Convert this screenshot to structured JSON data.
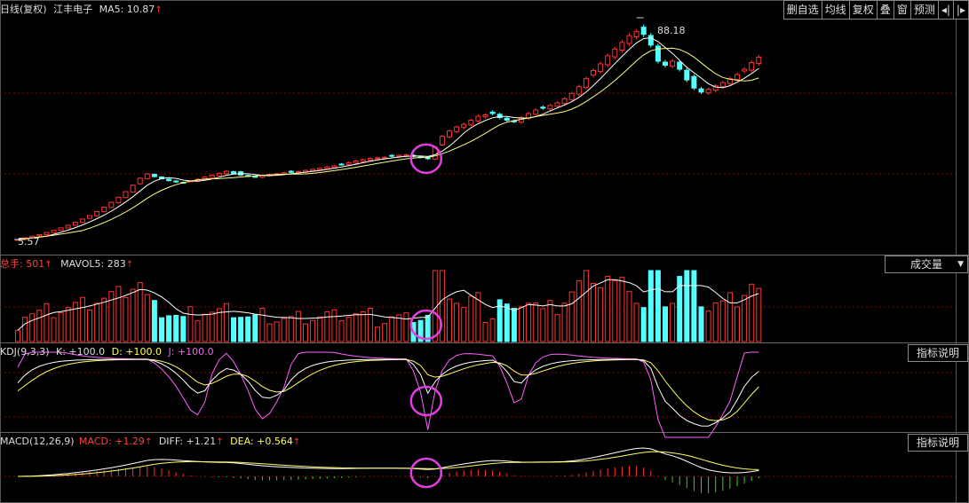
{
  "window": {
    "title_prefix": "日线(复权)",
    "stock_name": "江丰电子",
    "ma_label": "MA5: 10.87",
    "up_arrow": "↑"
  },
  "toolbar": {
    "buttons": [
      "删自选",
      "均线",
      "复权",
      "叠",
      "窗",
      "预测"
    ],
    "arrow_left": "◂|",
    "arrow_right": "|▸"
  },
  "volume_panel": {
    "total_label": "总手: 501",
    "mavol_label": "MAVOL5: 283",
    "dropdown_label": "成交量",
    "dropdown_arrow": "▼"
  },
  "kdj_panel": {
    "title": "KDJ(9,3,3)",
    "k_label": "K: +100.0",
    "d_label": "D: +100.0",
    "j_label": "J: +100.0",
    "help_button": "指标说明"
  },
  "macd_panel": {
    "title": "MACD(12,26,9)",
    "macd_label": "MACD: +1.29",
    "diff_label": "DIFF: +1.21",
    "dea_label": "DEA: +0.564",
    "help_button": "指标说明"
  },
  "colors": {
    "up": "#ff3232",
    "down": "#54ffff",
    "ma_white": "#ffffff",
    "ma_yellow": "#ffff80",
    "k_line": "#ffffff",
    "d_line": "#ffff60",
    "j_line": "#ff60ff",
    "marker": "#e040e0",
    "grid": "#8b0000"
  },
  "chart_data": {
    "type": "candlestick",
    "annotations": {
      "high_label": "88.18",
      "low_label": "5.57"
    },
    "price_range": [
      5.57,
      88.18
    ],
    "closes": [
      5.6,
      6.2,
      6.8,
      7.4,
      8.2,
      9.0,
      9.9,
      10.9,
      12.0,
      13.2,
      14.5,
      16.0,
      17.6,
      19.4,
      21.3,
      23.4,
      25.8,
      28.4,
      30.0,
      29.0,
      28.2,
      27.5,
      27.0,
      26.8,
      27.4,
      28.0,
      28.8,
      29.5,
      30.2,
      31.0,
      30.2,
      29.6,
      29.2,
      28.9,
      29.4,
      29.8,
      30.1,
      30.4,
      30.6,
      30.9,
      31.3,
      31.7,
      32.1,
      32.6,
      33.0,
      33.6,
      34.2,
      34.8,
      35.3,
      35.8,
      36.0,
      36.2,
      36.6,
      36.9,
      37.1,
      36.6,
      36.2,
      35.7,
      40.0,
      44.0,
      46.0,
      47.5,
      48.5,
      50.0,
      51.5,
      52.0,
      52.5,
      51.0,
      50.0,
      49.5,
      51.0,
      52.5,
      53.8,
      54.5,
      55.5,
      56.5,
      58.0,
      60.0,
      62.5,
      65.5,
      68.5,
      71.0,
      74.0,
      76.5,
      79.0,
      81.5,
      83.0,
      82.0,
      78.0,
      72.0,
      70.5,
      72.0,
      69.0,
      65.0,
      62.0,
      60.5,
      61.5,
      62.8,
      64.0,
      65.5,
      67.0,
      69.0,
      71.5,
      73.5
    ],
    "volume": {
      "peak": 501,
      "mavol5": 283
    },
    "kdj": {
      "k": 100.0,
      "d": 100.0,
      "j": 100.0,
      "range": [
        0,
        100
      ]
    },
    "macd": {
      "macd": 1.29,
      "diff": 1.21,
      "dea": 0.564
    },
    "highlight_circles": [
      "price",
      "volume",
      "kdj",
      "macd"
    ]
  }
}
